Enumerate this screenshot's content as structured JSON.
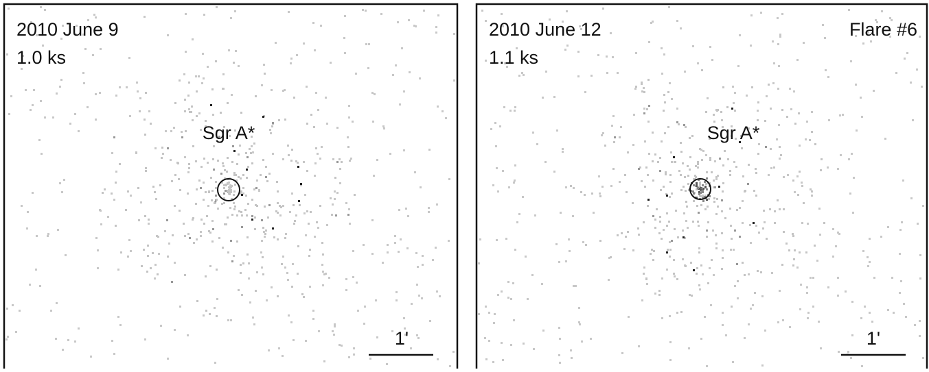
{
  "panels": [
    {
      "date": "2010 June 9",
      "exposure": "1.0 ks",
      "source": "Sgr A*",
      "scale": "1'"
    },
    {
      "date": "2010 June 12",
      "exposure": "1.1 ks",
      "flare": "Flare #6",
      "source": "Sgr A*",
      "scale": "1'"
    }
  ]
}
